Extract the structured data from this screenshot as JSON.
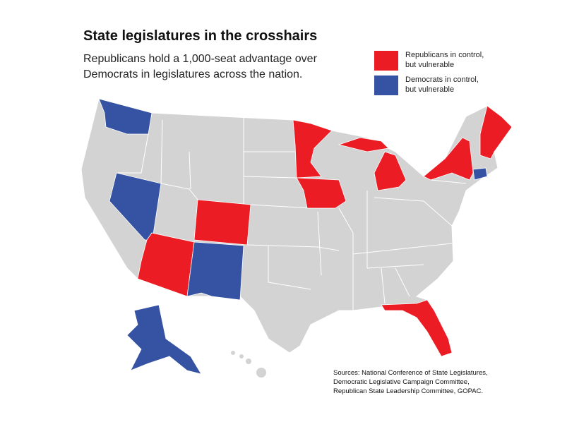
{
  "header": {
    "title": "State legislatures in the crosshairs",
    "subtitle": [
      "Republicans hold a 1,000-seat advantage over",
      "Democrats in legislatures across the nation."
    ]
  },
  "legend": [
    {
      "lines": [
        "Republicans in control,",
        "but vulnerable"
      ],
      "color": "#ec1c24"
    },
    {
      "lines": [
        "Democrats in control,",
        "but vulnerable"
      ],
      "color": "#3552a3"
    }
  ],
  "sources": [
    "Sources: National Conference of State Legislatures,",
    "Democratic Legislative Campaign Committee,",
    "Republican State Leadership Committee, GOPAC."
  ]
}
